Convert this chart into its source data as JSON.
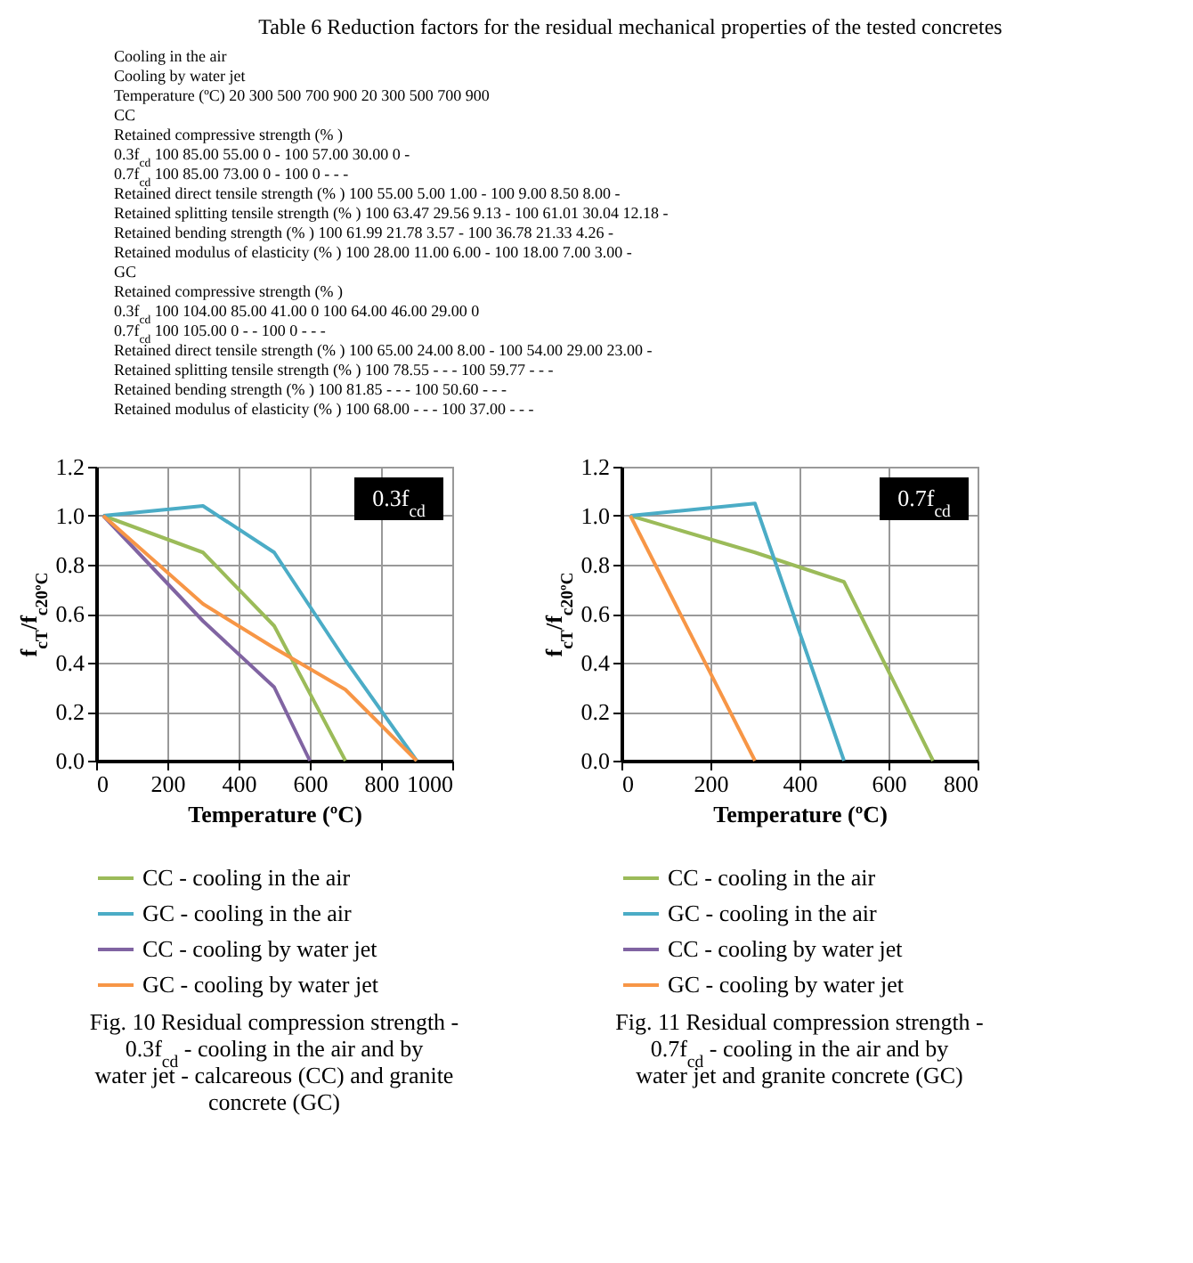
{
  "chart_data": [
    {
      "type": "other",
      "title": "Table 6 Reduction factors for the residual mechanical properties of the tested concretes",
      "annotations": [
        "Cooling in the air",
        "Cooling by water jet",
        "Temperature (ºC) 20 300 500 700 900 20 300 500 700 900",
        "CC",
        "Retained compressive strength (% )",
        "0.3f$_{cd}$ 100 85.00 55.00 0 - 100 57.00 30.00 0 -",
        "0.7f$_{cd}$ 100 85.00 73.00 0 - 100 0 - - -",
        "Retained direct tensile strength (% ) 100 55.00 5.00 1.00 - 100 9.00 8.50 8.00 -",
        "Retained splitting tensile strength (% ) 100 63.47 29.56 9.13 - 100 61.01 30.04 12.18 -",
        "Retained bending strength (% ) 100 61.99 21.78 3.57 - 100 36.78 21.33 4.26 -",
        "Retained modulus of elasticity (% ) 100 28.00 11.00 6.00 - 100 18.00 7.00 3.00 -",
        "GC",
        "Retained compressive strength (% )",
        "0.3f$_{cd}$ 100 104.00 85.00 41.00 0 100 64.00 46.00 29.00 0",
        "0.7f$_{cd}$ 100 105.00 0 - - 100 0 - - -",
        "Retained direct tensile strength (% ) 100 65.00 24.00 8.00 - 100 54.00 29.00 23.00 -",
        "Retained splitting tensile strength (% ) 100 78.55 - - - 100 59.77 - - -",
        "Retained bending strength (% ) 100 81.85 - - - 100 50.60 - - -",
        "Retained modulus of elasticity (% ) 100 68.00 - - - 100 37.00 - - -"
      ]
    },
    {
      "type": "line",
      "title": "Fig. 10 Residual compression strength - 0.3f$_{cd}$ - cooling in the air and by water jet - calcareous (CC) and granite concrete (GC)",
      "xlabel": "Temperature   (ºC)",
      "ylabel": "f$_{cT}$/f$_{c20ºC}$",
      "annotations": [
        "0.3f$_{cd}$"
      ],
      "series": [
        {
          "name": "CC - cooling in the air",
          "color": "#9bbb59",
          "x": [
            20,
            300,
            500,
            700
          ],
          "values": [
            1.0,
            0.85,
            0.55,
            0
          ]
        },
        {
          "name": "GC - cooling in the air",
          "color": "#4bacc6",
          "x": [
            20,
            300,
            500,
            700,
            900
          ],
          "values": [
            1.0,
            1.04,
            0.85,
            0.41,
            0
          ]
        },
        {
          "name": "CC - cooling by water jet",
          "color": "#8064a2",
          "x": [
            20,
            300,
            500,
            600
          ],
          "values": [
            1.0,
            0.57,
            0.3,
            0
          ]
        },
        {
          "name": "GC - cooling by water jet",
          "color": "#f79646",
          "x": [
            20,
            300,
            500,
            700,
            900
          ],
          "values": [
            1.0,
            0.64,
            0.46,
            0.29,
            0
          ]
        }
      ],
      "xlim": [
        0,
        1000
      ],
      "xticks": [
        0,
        200,
        400,
        600,
        800,
        1000
      ],
      "ylim": [
        0,
        1.2
      ],
      "yticks": [
        {
          "value": 0,
          "label": "0.0"
        },
        {
          "value": 0.2,
          "label": "0.2"
        },
        {
          "value": 0.4,
          "label": "0.4"
        },
        {
          "value": 0.6,
          "label": "0.6"
        },
        {
          "value": 0.8,
          "label": "0.8"
        },
        {
          "value": 1,
          "label": "1.0"
        },
        {
          "value": 1.2,
          "label": "1.2"
        }
      ],
      "grid": true,
      "legend": "bottom"
    },
    {
      "type": "line",
      "title": "Fig. 11 Residual compression strength - 0.7f$_{cd}$ - cooling in the air and by water jet and granite concrete (GC)",
      "xlabel": "Temperature   (ºC)",
      "ylabel": "f$_{cT}$/f$_{c20ºC}$",
      "annotations": [
        "0.7f$_{cd}$"
      ],
      "series": [
        {
          "name": "CC - cooling in the air",
          "color": "#9bbb59",
          "x": [
            20,
            300,
            500,
            700
          ],
          "values": [
            1.0,
            0.85,
            0.73,
            0
          ]
        },
        {
          "name": "GC - cooling in the air",
          "color": "#4bacc6",
          "x": [
            20,
            300,
            500
          ],
          "values": [
            1.0,
            1.05,
            0
          ]
        },
        {
          "name": "CC - cooling by water jet",
          "color": "#8064a2"
        },
        {
          "name": "GC - cooling by water jet",
          "color": "#f79646",
          "x": [
            20,
            300
          ],
          "values": [
            1.0,
            0
          ]
        }
      ],
      "xlim": [
        0,
        800
      ],
      "xticks": [
        0,
        200,
        400,
        600,
        800
      ],
      "ylim": [
        0,
        1.2
      ],
      "yticks": [
        {
          "value": 0,
          "label": "0.0"
        },
        {
          "value": 0.2,
          "label": "0.2"
        },
        {
          "value": 0.4,
          "label": "0.4"
        },
        {
          "value": 0.6,
          "label": "0.6"
        },
        {
          "value": 0.8,
          "label": "0.8"
        },
        {
          "value": 1,
          "label": "1.0"
        },
        {
          "value": 1.2,
          "label": "1.2"
        }
      ],
      "grid": true,
      "legend": "bottom"
    }
  ]
}
